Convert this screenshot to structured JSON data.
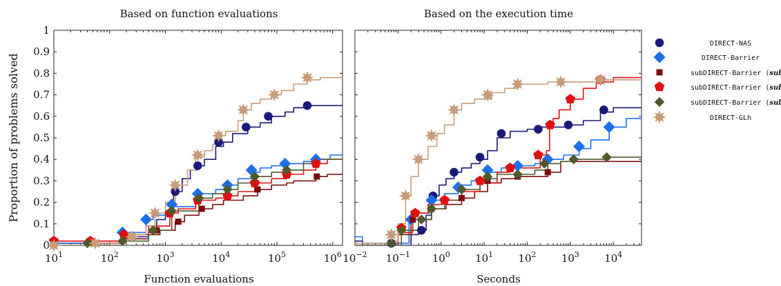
{
  "colors": {
    "DIRECT-NAS": "#1a1a7a",
    "DIRECT-Barrier": "#1f6fe8",
    "subDIRECT-Barrier (sub = 2)": "#7a0c0c",
    "subDIRECT-Barrier (sub = 3)": "#e01010",
    "subDIRECT-Barrier (sub = 5)": "#4e5a2a",
    "DIRECT-GLh": "#c99b78"
  },
  "ylabel": "Proportion of problems solved",
  "legend": [
    {
      "label": "DIRECT-NAS",
      "marker": "circle"
    },
    {
      "label": "DIRECT-Barrier",
      "marker": "diamond"
    },
    {
      "prefix": "subDIRECT-Barrier (",
      "var": "sub",
      "suffix": " = 2)",
      "marker": "square"
    },
    {
      "prefix": "subDIRECT-Barrier (",
      "var": "sub",
      "suffix": " = 3)",
      "marker": "pentagon"
    },
    {
      "prefix": "subDIRECT-Barrier (",
      "var": "sub",
      "suffix": " = 5)",
      "marker": "diamond2"
    },
    {
      "label": "DIRECT-GLh",
      "marker": "star"
    }
  ],
  "chart_data": [
    {
      "type": "line",
      "title": "Based on function evaluations",
      "xlabel": "Function evaluations",
      "xscale": "log",
      "xlim": [
        10,
        1500000
      ],
      "ylim": [
        0,
        1
      ],
      "xtick_exponents": [
        "1",
        "2",
        "3",
        "4",
        "5",
        "6"
      ],
      "ytick_labels": [
        "0",
        "0.1",
        "0.2",
        "0.3",
        "0.4",
        "0.5",
        "0.6",
        "0.7",
        "0.8",
        "0.9",
        "1"
      ],
      "series": [
        {
          "name": "DIRECT-NAS",
          "x": [
            10,
            45,
            200,
            500,
            700,
            1000,
            1400,
            2000,
            2800,
            3600,
            5000,
            8000,
            11000,
            16000,
            30000,
            50000,
            80000,
            140000,
            200000,
            350000,
            500000,
            1500000
          ],
          "y": [
            0.01,
            0.01,
            0.04,
            0.06,
            0.12,
            0.16,
            0.25,
            0.31,
            0.35,
            0.37,
            0.4,
            0.46,
            0.48,
            0.52,
            0.55,
            0.57,
            0.6,
            0.62,
            0.64,
            0.65,
            0.65,
            0.65
          ]
        },
        {
          "name": "DIRECT-Barrier",
          "x": [
            10,
            40,
            170,
            450,
            600,
            1200,
            3500,
            8000,
            13000,
            20000,
            35000,
            50000,
            80000,
            150000,
            300000,
            500000,
            900000,
            1500000
          ],
          "y": [
            0.01,
            0.02,
            0.06,
            0.12,
            0.14,
            0.18,
            0.24,
            0.26,
            0.28,
            0.31,
            0.34,
            0.36,
            0.37,
            0.38,
            0.39,
            0.4,
            0.42,
            0.43
          ]
        },
        {
          "name": "subDIRECT-Barrier (sub = 2)",
          "x": [
            10,
            40,
            180,
            500,
            800,
            1500,
            2200,
            4000,
            7000,
            11000,
            25000,
            45000,
            80000,
            150000,
            200000,
            500000,
            800000,
            1500000
          ],
          "y": [
            0.0,
            0.01,
            0.03,
            0.05,
            0.07,
            0.11,
            0.14,
            0.17,
            0.19,
            0.21,
            0.23,
            0.26,
            0.28,
            0.29,
            0.3,
            0.32,
            0.33,
            0.34
          ]
        },
        {
          "name": "subDIRECT-Barrier (sub = 3)",
          "x": [
            10,
            45,
            180,
            500,
            1200,
            1700,
            3500,
            8000,
            12000,
            20000,
            40000,
            80000,
            150000,
            300000,
            500000,
            800000,
            1500000
          ],
          "y": [
            0.02,
            0.02,
            0.05,
            0.09,
            0.15,
            0.17,
            0.21,
            0.22,
            0.23,
            0.25,
            0.29,
            0.31,
            0.33,
            0.35,
            0.38,
            0.4,
            0.41
          ]
        },
        {
          "name": "subDIRECT-Barrier (sub = 5)",
          "x": [
            10,
            40,
            170,
            500,
            600,
            1300,
            4000,
            7000,
            12000,
            20000,
            40000,
            80000,
            150000,
            300000,
            500000,
            1500000
          ],
          "y": [
            0.0,
            0.0,
            0.02,
            0.05,
            0.07,
            0.16,
            0.22,
            0.24,
            0.26,
            0.29,
            0.32,
            0.34,
            0.35,
            0.38,
            0.4,
            0.41
          ]
        },
        {
          "name": "DIRECT-GLh",
          "x": [
            10,
            55,
            200,
            450,
            650,
            1000,
            1500,
            2500,
            3500,
            5000,
            7000,
            9000,
            12000,
            20000,
            25000,
            35000,
            50000,
            80000,
            120000,
            200000,
            350000,
            600000,
            1500000
          ],
          "y": [
            0.0,
            0.01,
            0.05,
            0.09,
            0.15,
            0.2,
            0.28,
            0.35,
            0.41,
            0.44,
            0.47,
            0.51,
            0.53,
            0.58,
            0.63,
            0.66,
            0.68,
            0.7,
            0.72,
            0.75,
            0.77,
            0.78,
            0.78
          ]
        }
      ],
      "markers": [
        {
          "series": "DIRECT-NAS",
          "x": [
            1500,
            3800,
            9000,
            28000,
            70000,
            350000
          ],
          "y": [
            0.25,
            0.37,
            0.48,
            0.55,
            0.6,
            0.65
          ]
        },
        {
          "series": "DIRECT-Barrier",
          "x": [
            170,
            450,
            1300,
            3800,
            13000,
            35000,
            140000,
            500000
          ],
          "y": [
            0.06,
            0.12,
            0.19,
            0.24,
            0.28,
            0.35,
            0.38,
            0.4
          ]
        },
        {
          "series": "subDIRECT-Barrier (sub = 2)",
          "x": [
            700,
            1700,
            4500,
            45000,
            520000
          ],
          "y": [
            0.07,
            0.11,
            0.17,
            0.26,
            0.32
          ]
        },
        {
          "series": "subDIRECT-Barrier (sub = 3)",
          "x": [
            10,
            45,
            180,
            1200,
            3800,
            13000,
            40000,
            150000,
            500000
          ],
          "y": [
            0.02,
            0.02,
            0.05,
            0.15,
            0.21,
            0.23,
            0.29,
            0.33,
            0.38
          ]
        },
        {
          "series": "subDIRECT-Barrier (sub = 5)",
          "x": [
            40,
            170,
            600,
            1300,
            4000,
            13000,
            40000,
            150000
          ],
          "y": [
            0.01,
            0.02,
            0.07,
            0.16,
            0.22,
            0.26,
            0.32,
            0.35
          ]
        },
        {
          "series": "DIRECT-GLh",
          "x": [
            10,
            55,
            250,
            650,
            1500,
            3800,
            9000,
            25000,
            90000,
            350000
          ],
          "y": [
            0.0,
            0.01,
            0.04,
            0.15,
            0.28,
            0.42,
            0.51,
            0.63,
            0.7,
            0.78
          ]
        }
      ]
    },
    {
      "type": "line",
      "title": "Based on the execution time",
      "xlabel": "Seconds",
      "xscale": "log",
      "xlim": [
        0.01,
        45000
      ],
      "ylim": [
        0,
        1
      ],
      "xtick_exponents": [
        "−2",
        "−1",
        "0",
        "1",
        "2",
        "3",
        "4"
      ],
      "ytick_labels": [],
      "series": [
        {
          "name": "DIRECT-NAS",
          "x": [
            0.01,
            0.015,
            0.07,
            0.2,
            0.3,
            0.45,
            0.6,
            0.9,
            1.3,
            2,
            3,
            5,
            8,
            12,
            20,
            40,
            100,
            200,
            500,
            900,
            2000,
            5000,
            10000,
            45000
          ],
          "y": [
            0.02,
            0.0,
            0.0,
            0.05,
            0.07,
            0.14,
            0.23,
            0.28,
            0.31,
            0.34,
            0.36,
            0.38,
            0.4,
            0.44,
            0.5,
            0.53,
            0.54,
            0.55,
            0.55,
            0.56,
            0.58,
            0.62,
            0.64,
            0.64
          ]
        },
        {
          "name": "DIRECT-Barrier",
          "x": [
            0.01,
            0.015,
            0.07,
            0.18,
            0.25,
            0.6,
            1.2,
            2.5,
            5,
            12,
            25,
            50,
            150,
            300,
            700,
            1600,
            3000,
            8000,
            20000,
            45000
          ],
          "y": [
            0.04,
            0.01,
            0.01,
            0.12,
            0.15,
            0.21,
            0.24,
            0.28,
            0.3,
            0.34,
            0.36,
            0.37,
            0.38,
            0.4,
            0.42,
            0.45,
            0.49,
            0.55,
            0.59,
            0.61
          ]
        },
        {
          "name": "subDIRECT-Barrier (sub = 2)",
          "x": [
            0.01,
            0.07,
            0.1,
            0.2,
            0.6,
            1.3,
            3,
            6,
            12,
            25,
            60,
            150,
            300,
            600,
            1200,
            45000
          ],
          "y": [
            0.0,
            0.0,
            0.05,
            0.12,
            0.17,
            0.19,
            0.22,
            0.25,
            0.29,
            0.31,
            0.32,
            0.32,
            0.34,
            0.39,
            0.39,
            0.39
          ]
        },
        {
          "name": "subDIRECT-Barrier (sub = 3)",
          "x": [
            0.01,
            0.07,
            0.1,
            0.22,
            0.5,
            1.1,
            3,
            8,
            20,
            40,
            70,
            150,
            200,
            280,
            330,
            400,
            550,
            1000,
            2000,
            4000,
            10000,
            45000
          ],
          "y": [
            0.0,
            0.0,
            0.06,
            0.15,
            0.19,
            0.21,
            0.25,
            0.29,
            0.34,
            0.36,
            0.36,
            0.36,
            0.42,
            0.44,
            0.56,
            0.59,
            0.63,
            0.68,
            0.73,
            0.76,
            0.78,
            0.78
          ]
        },
        {
          "name": "subDIRECT-Barrier (sub = 5)",
          "x": [
            0.01,
            0.07,
            0.12,
            0.3,
            0.6,
            1.2,
            3,
            8,
            20,
            60,
            150,
            300,
            600,
            1200,
            3000,
            8000,
            45000
          ],
          "y": [
            0.0,
            0.0,
            0.07,
            0.12,
            0.17,
            0.21,
            0.26,
            0.31,
            0.33,
            0.33,
            0.35,
            0.38,
            0.39,
            0.4,
            0.4,
            0.41,
            0.41
          ]
        },
        {
          "name": "DIRECT-GLh",
          "x": [
            0.01,
            0.06,
            0.1,
            0.15,
            0.2,
            0.3,
            0.5,
            0.8,
            1.2,
            2,
            3,
            6,
            15,
            30,
            60,
            120,
            300,
            1000,
            3000,
            6000,
            45000
          ],
          "y": [
            0.01,
            0.02,
            0.1,
            0.23,
            0.32,
            0.4,
            0.46,
            0.52,
            0.56,
            0.63,
            0.66,
            0.68,
            0.71,
            0.73,
            0.75,
            0.75,
            0.76,
            0.76,
            0.76,
            0.77,
            0.77
          ]
        }
      ],
      "markers": [
        {
          "series": "DIRECT-NAS",
          "x": [
            0.07,
            0.35,
            0.65,
            2,
            8,
            25,
            180,
            900,
            6000
          ],
          "y": [
            0.01,
            0.07,
            0.23,
            0.34,
            0.41,
            0.52,
            0.54,
            0.56,
            0.63
          ]
        },
        {
          "series": "DIRECT-Barrier",
          "x": [
            0.2,
            0.6,
            2.5,
            12,
            60,
            300,
            1600,
            8000
          ],
          "y": [
            0.12,
            0.21,
            0.27,
            0.35,
            0.37,
            0.4,
            0.46,
            0.55
          ]
        },
        {
          "series": "subDIRECT-Barrier (sub = 2)",
          "x": [
            0.22,
            0.6,
            3,
            12,
            60,
            300
          ],
          "y": [
            0.12,
            0.17,
            0.22,
            0.3,
            0.32,
            0.34
          ]
        },
        {
          "series": "subDIRECT-Barrier (sub = 3)",
          "x": [
            0.12,
            0.25,
            1.2,
            8,
            40,
            180,
            340,
            1000,
            5000
          ],
          "y": [
            0.08,
            0.15,
            0.21,
            0.3,
            0.36,
            0.42,
            0.56,
            0.68,
            0.77
          ]
        },
        {
          "series": "subDIRECT-Barrier (sub = 5)",
          "x": [
            0.07,
            0.12,
            0.35,
            0.6,
            3,
            12,
            60,
            250,
            1200,
            7000
          ],
          "y": [
            0.01,
            0.07,
            0.12,
            0.17,
            0.26,
            0.32,
            0.33,
            0.38,
            0.4,
            0.41
          ]
        },
        {
          "series": "DIRECT-GLh",
          "x": [
            0.07,
            0.15,
            0.3,
            0.6,
            2,
            12,
            60,
            600,
            5000
          ],
          "y": [
            0.05,
            0.23,
            0.4,
            0.51,
            0.63,
            0.7,
            0.75,
            0.76,
            0.77
          ]
        }
      ]
    }
  ]
}
